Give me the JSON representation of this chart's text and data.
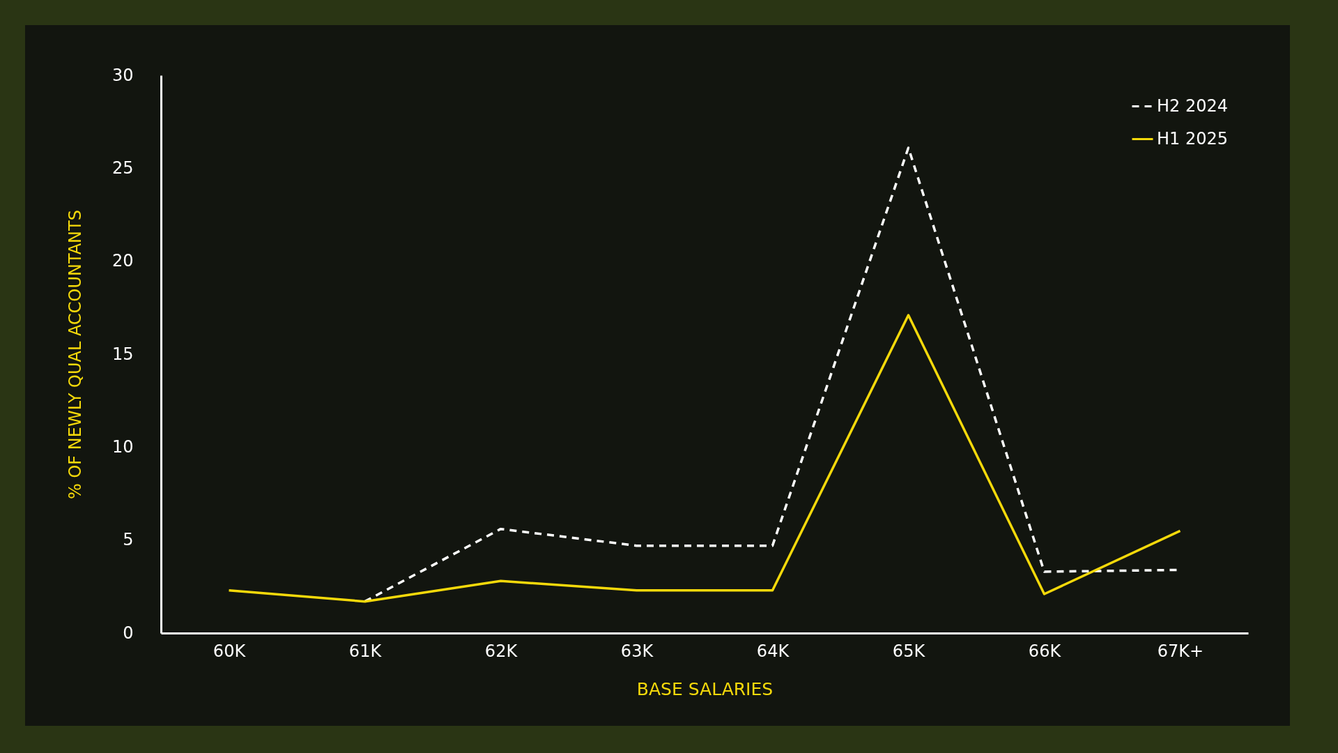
{
  "chart_data": {
    "type": "line",
    "xlabel": "BASE SALARIES",
    "ylabel": "% OF NEWLY QUAL ACCOUNTANTS",
    "categories": [
      "60K",
      "61K",
      "62K",
      "63K",
      "64K",
      "65K",
      "66K",
      "67K+"
    ],
    "series": [
      {
        "name": "H2 2024",
        "color": "#ffffff",
        "line_style": "dashed",
        "values": [
          null,
          1.7,
          5.6,
          4.7,
          4.7,
          26.1,
          3.3,
          3.4
        ]
      },
      {
        "name": "H1 2025",
        "color": "#f5d90a",
        "line_style": "solid",
        "values": [
          2.3,
          1.7,
          2.8,
          2.3,
          2.3,
          17.1,
          2.1,
          5.5
        ]
      }
    ],
    "ylim": [
      0,
      30
    ],
    "yticks": [
      0,
      5,
      10,
      15,
      20,
      25,
      30
    ],
    "grid": false,
    "legend": "top right"
  }
}
